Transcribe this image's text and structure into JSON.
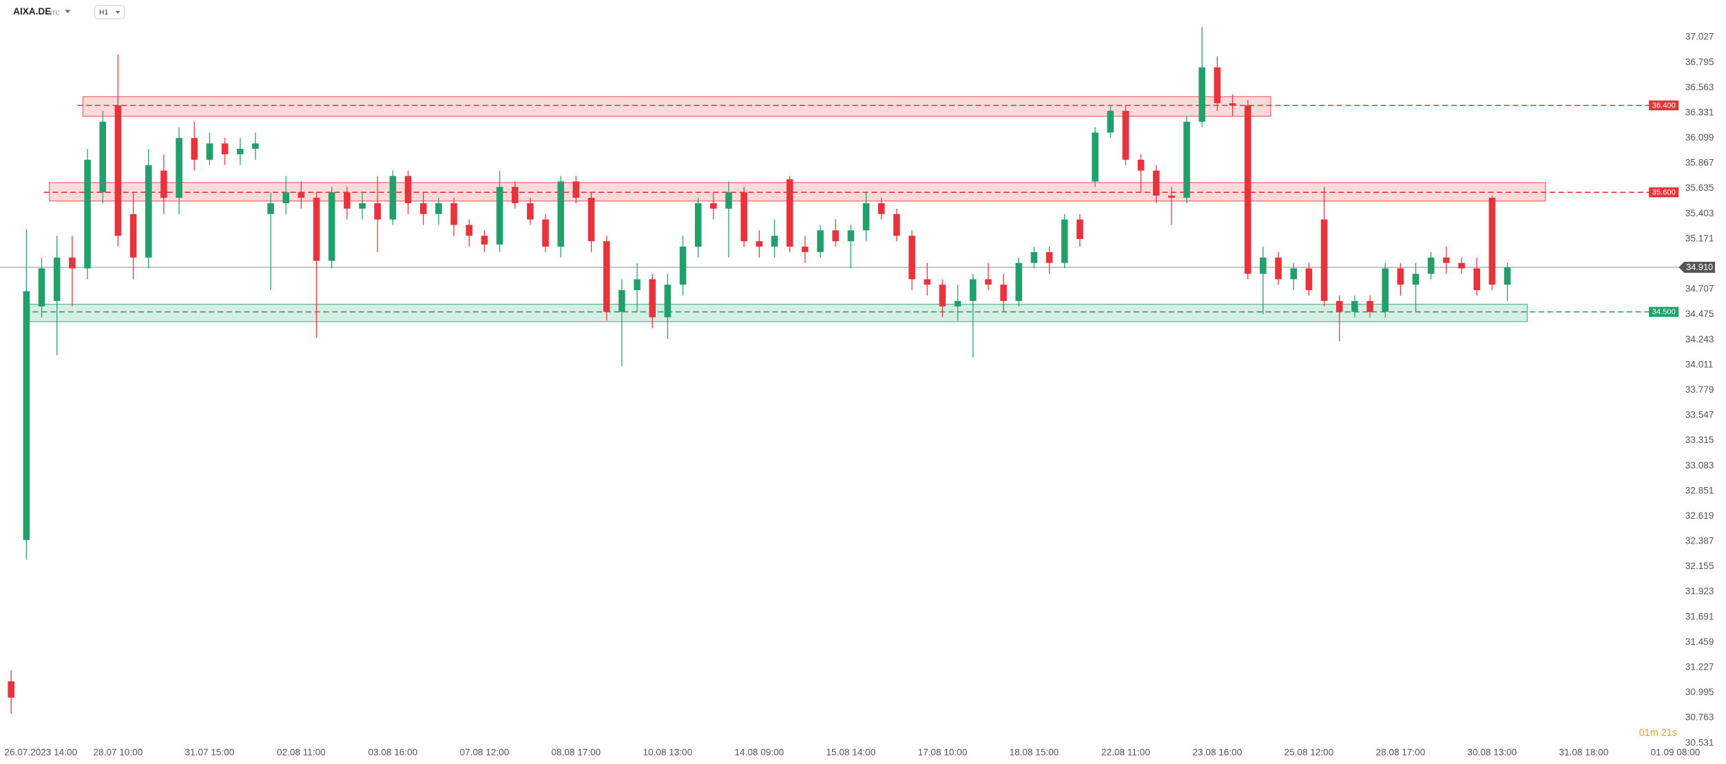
{
  "header": {
    "symbol": "AIXA.DE",
    "market": "STC",
    "interval": "H1"
  },
  "timer": "01m 21s",
  "chart_data": {
    "type": "candlestick",
    "categories": [
      null,
      "26.07.2023 14:00",
      null,
      null,
      null,
      null,
      null,
      "28.07 10:00",
      null,
      null,
      null,
      null,
      null,
      "31.07 15:00",
      null,
      null,
      null,
      null,
      null,
      "02.08 11:00",
      null,
      null,
      null,
      null,
      null,
      "03.08 16:00",
      null,
      null,
      null,
      null,
      null,
      "07.08 12:00",
      null,
      null,
      null,
      null,
      null,
      "08.08 17:00",
      null,
      null,
      null,
      null,
      null,
      "10.08 13:00",
      null,
      null,
      null,
      null,
      null,
      "14.08 09:00",
      null,
      null,
      null,
      null,
      null,
      "15.08 14:00",
      null,
      null,
      null,
      null,
      null,
      "17.08 10:00",
      null,
      null,
      null,
      null,
      null,
      "18.08 15:00",
      null,
      null,
      null,
      null,
      null,
      "22.08 11:00",
      null,
      null,
      null,
      null,
      null,
      "23.08 16:00",
      null,
      null,
      null,
      null,
      null,
      "25.08 12:00",
      null,
      null,
      null,
      null,
      null,
      "28.08 17:00",
      null,
      null,
      null,
      null,
      null,
      "30.08 13:00",
      null,
      null,
      null,
      null,
      null,
      "31.08 18:00",
      null,
      null,
      null,
      null,
      null,
      "01.09 08:00"
    ],
    "open": [
      31.1,
      32.4,
      34.55,
      34.6,
      35.0,
      34.9,
      35.6,
      36.4,
      35.4,
      35.0,
      35.8,
      35.55,
      36.1,
      35.9,
      36.05,
      35.95,
      36.0,
      35.4,
      35.5,
      35.6,
      35.55,
      34.97,
      35.6,
      35.45,
      35.5,
      35.35,
      35.75,
      35.5,
      35.4,
      35.5,
      35.3,
      35.2,
      35.12,
      35.65,
      35.5,
      35.35,
      35.1,
      35.7,
      35.55,
      35.15,
      34.5,
      34.7,
      34.8,
      34.45,
      34.75,
      35.1,
      35.5,
      35.45,
      35.6,
      35.15,
      35.1,
      35.72,
      35.1,
      35.05,
      35.25,
      35.15,
      35.25,
      35.5,
      35.4,
      35.2,
      34.8,
      34.75,
      34.55,
      34.6,
      34.8,
      34.75,
      34.6,
      34.95,
      35.05,
      34.95,
      35.35,
      35.7,
      36.15,
      36.35,
      35.9,
      35.8,
      35.57,
      35.55,
      36.25,
      36.75,
      36.42,
      36.4,
      34.85,
      35.0,
      34.8,
      34.9,
      35.35,
      34.6,
      34.5,
      34.6,
      34.5,
      34.9,
      34.75,
      34.85,
      35.0,
      34.95,
      34.9,
      35.55,
      34.75,
      null,
      null,
      null,
      null,
      null,
      null,
      null,
      null,
      null,
      null,
      null
    ],
    "high": [
      31.2,
      35.26,
      35.0,
      35.2,
      35.2,
      36.0,
      36.35,
      36.87,
      35.6,
      36.0,
      35.95,
      36.2,
      36.25,
      36.15,
      36.1,
      36.1,
      36.15,
      35.6,
      35.75,
      35.7,
      35.6,
      35.65,
      35.65,
      35.6,
      35.75,
      35.8,
      35.8,
      35.6,
      35.55,
      35.55,
      35.35,
      35.25,
      35.8,
      35.7,
      35.55,
      35.4,
      35.75,
      35.75,
      35.6,
      35.2,
      34.8,
      34.95,
      34.85,
      34.85,
      35.2,
      35.55,
      35.6,
      35.7,
      35.65,
      35.25,
      35.35,
      35.75,
      35.2,
      35.3,
      35.35,
      35.3,
      35.6,
      35.55,
      35.45,
      35.25,
      34.95,
      34.8,
      34.75,
      34.85,
      34.95,
      34.85,
      35.0,
      35.1,
      35.1,
      35.4,
      35.4,
      36.2,
      36.4,
      36.4,
      35.95,
      35.85,
      35.65,
      36.3,
      37.12,
      36.85,
      36.5,
      36.45,
      35.1,
      35.05,
      34.95,
      34.95,
      35.65,
      34.65,
      34.65,
      34.65,
      34.95,
      34.95,
      34.95,
      35.05,
      35.1,
      35.0,
      35.0,
      35.57,
      34.95,
      null,
      null,
      null,
      null,
      null,
      null,
      null,
      null,
      null,
      null,
      null
    ],
    "low": [
      30.8,
      32.22,
      34.45,
      34.1,
      34.55,
      34.8,
      35.5,
      35.1,
      34.8,
      34.9,
      35.4,
      35.4,
      35.8,
      35.85,
      35.85,
      35.85,
      35.9,
      34.7,
      35.4,
      35.45,
      34.26,
      34.9,
      35.35,
      35.35,
      35.05,
      35.3,
      35.4,
      35.3,
      35.3,
      35.2,
      35.1,
      35.05,
      35.05,
      35.45,
      35.3,
      35.05,
      35.0,
      35.5,
      35.05,
      34.42,
      34.0,
      34.5,
      34.35,
      34.25,
      34.65,
      35.0,
      35.35,
      35.0,
      35.1,
      35.0,
      35.0,
      35.05,
      34.95,
      35.0,
      35.1,
      34.9,
      35.15,
      35.35,
      35.15,
      34.7,
      34.65,
      34.45,
      34.42,
      34.08,
      34.7,
      34.5,
      34.55,
      34.9,
      34.85,
      34.9,
      35.1,
      35.65,
      36.1,
      35.85,
      35.6,
      35.5,
      35.3,
      35.5,
      36.2,
      36.35,
      36.3,
      34.8,
      34.48,
      34.75,
      34.7,
      34.65,
      34.55,
      34.23,
      34.45,
      34.45,
      34.45,
      34.65,
      34.5,
      34.8,
      34.85,
      34.85,
      34.65,
      34.7,
      34.6,
      null,
      null,
      null,
      null,
      null,
      null,
      null,
      null,
      null,
      null,
      null
    ],
    "close": [
      30.95,
      34.69,
      34.9,
      35.0,
      34.9,
      35.9,
      36.25,
      35.2,
      35.0,
      35.85,
      35.55,
      36.1,
      35.9,
      36.05,
      35.95,
      36.0,
      36.05,
      35.5,
      35.6,
      35.55,
      34.97,
      35.6,
      35.45,
      35.5,
      35.35,
      35.75,
      35.5,
      35.4,
      35.5,
      35.3,
      35.2,
      35.12,
      35.65,
      35.5,
      35.35,
      35.1,
      35.7,
      35.55,
      35.15,
      34.5,
      34.7,
      34.8,
      34.45,
      34.75,
      35.1,
      35.5,
      35.45,
      35.6,
      35.15,
      35.1,
      35.2,
      35.1,
      35.05,
      35.25,
      35.15,
      35.25,
      35.5,
      35.4,
      35.2,
      34.8,
      34.75,
      34.55,
      34.6,
      34.8,
      34.75,
      34.6,
      34.95,
      35.05,
      34.95,
      35.35,
      35.17,
      36.15,
      36.35,
      35.9,
      35.8,
      35.57,
      35.55,
      36.25,
      36.75,
      36.42,
      36.4,
      34.85,
      35.0,
      34.8,
      34.9,
      34.7,
      34.6,
      34.5,
      34.6,
      34.5,
      34.9,
      34.75,
      34.85,
      35.0,
      34.95,
      34.9,
      34.7,
      34.75,
      34.91,
      null,
      null,
      null,
      null,
      null,
      null,
      null,
      null,
      null,
      null,
      null
    ],
    "up_color": "#22a06b",
    "down_color": "#e8323c",
    "ylim": [
      30.43,
      37.37
    ],
    "yticks": [
      37.027,
      36.795,
      36.563,
      36.331,
      36.099,
      35.867,
      35.635,
      35.403,
      35.171,
      34.707,
      34.475,
      34.243,
      34.011,
      33.779,
      33.547,
      33.315,
      33.083,
      32.851,
      32.619,
      32.387,
      32.155,
      31.923,
      31.691,
      31.459,
      31.227,
      30.995,
      30.763,
      30.531
    ],
    "current_price": {
      "value": 34.91,
      "label": "34.910",
      "color": "#555555"
    },
    "levels": [
      {
        "value": 36.4,
        "label": "36.400",
        "color": "#e8323c",
        "zone": [
          36.3,
          36.48
        ],
        "from": 4.7,
        "to": 82.5
      },
      {
        "value": 35.6,
        "label": "35.600",
        "color": "#e8323c",
        "zone": [
          35.52,
          35.69
        ],
        "from": 2.5,
        "to": 100.5
      },
      {
        "value": 34.5,
        "label": "34.500",
        "color": "#22a06b",
        "zone": [
          34.41,
          34.57
        ],
        "from": 1.2,
        "to": 99.3
      }
    ]
  }
}
